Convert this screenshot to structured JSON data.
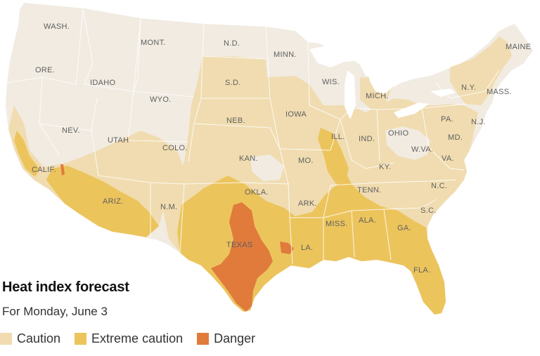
{
  "title": "Heat index forecast",
  "subtitle": "For Monday, June 3",
  "legend": [
    {
      "label": "Caution",
      "color": "#f0dcb0"
    },
    {
      "label": "Extreme caution",
      "color": "#ecc45c"
    },
    {
      "label": "Danger",
      "color": "#e07b3c"
    }
  ],
  "base_color": "#f1ebe2",
  "border_color": "#ffffff",
  "states": [
    {
      "abbr": "WASH."
    },
    {
      "abbr": "MONT."
    },
    {
      "abbr": "N.D."
    },
    {
      "abbr": "MINN."
    },
    {
      "abbr": "MAINE"
    },
    {
      "abbr": "ORE."
    },
    {
      "abbr": "IDAHO"
    },
    {
      "abbr": "S.D."
    },
    {
      "abbr": "WIS."
    },
    {
      "abbr": "WYO."
    },
    {
      "abbr": "MICH."
    },
    {
      "abbr": "N.Y."
    },
    {
      "abbr": "MASS."
    },
    {
      "abbr": "NEB."
    },
    {
      "abbr": "IOWA"
    },
    {
      "abbr": "NEV."
    },
    {
      "abbr": "UTAH"
    },
    {
      "abbr": "ILL."
    },
    {
      "abbr": "IND."
    },
    {
      "abbr": "OHIO"
    },
    {
      "abbr": "PA."
    },
    {
      "abbr": "N.J."
    },
    {
      "abbr": "COLO."
    },
    {
      "abbr": "MD."
    },
    {
      "abbr": "W.VA."
    },
    {
      "abbr": "CALIF."
    },
    {
      "abbr": "KAN."
    },
    {
      "abbr": "MO."
    },
    {
      "abbr": "KY."
    },
    {
      "abbr": "VA."
    },
    {
      "abbr": "OKLA."
    },
    {
      "abbr": "TENN."
    },
    {
      "abbr": "N.C."
    },
    {
      "abbr": "ARIZ."
    },
    {
      "abbr": "N.M."
    },
    {
      "abbr": "ARK."
    },
    {
      "abbr": "S.C."
    },
    {
      "abbr": "MISS."
    },
    {
      "abbr": "ALA."
    },
    {
      "abbr": "GA."
    },
    {
      "abbr": "TEXAS"
    },
    {
      "abbr": "LA."
    },
    {
      "abbr": "FLA."
    }
  ]
}
